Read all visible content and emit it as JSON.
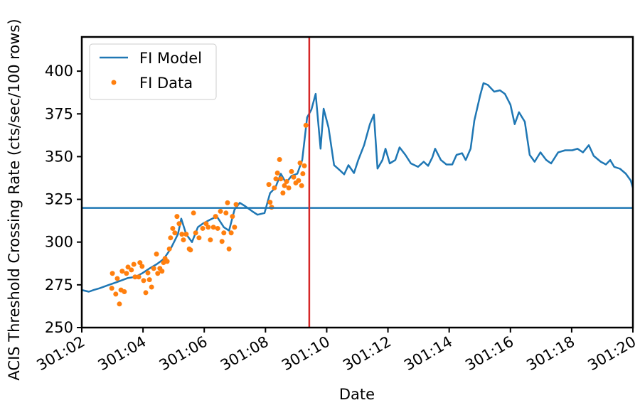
{
  "chart_data": {
    "type": "line",
    "xlabel": "Date",
    "ylabel": "ACIS Threshold Crossing Rate (cts/sec/100 rows)",
    "xlim": [
      2,
      20
    ],
    "xticks": [
      {
        "value": 2,
        "label": "301:02"
      },
      {
        "value": 4,
        "label": "301:04"
      },
      {
        "value": 6,
        "label": "301:06"
      },
      {
        "value": 8,
        "label": "301:08"
      },
      {
        "value": 10,
        "label": "301:10"
      },
      {
        "value": 12,
        "label": "301:12"
      },
      {
        "value": 14,
        "label": "301:14"
      },
      {
        "value": 16,
        "label": "301:16"
      },
      {
        "value": 18,
        "label": "301:18"
      },
      {
        "value": 20,
        "label": "301:20"
      }
    ],
    "ylim": [
      250,
      420
    ],
    "yticks": [
      250,
      275,
      300,
      325,
      350,
      375,
      400
    ],
    "legend": "upper left",
    "hlines": [
      {
        "value": 320,
        "color": "#1f77b4"
      }
    ],
    "vlines": [
      {
        "value": 9.43,
        "color": "#d62728"
      }
    ],
    "series": [
      {
        "name": "FI Model",
        "type": "line",
        "color": "#1f77b4",
        "x": [
          2.0,
          2.23,
          2.39,
          2.58,
          2.81,
          3.16,
          3.51,
          3.74,
          3.97,
          4.21,
          4.44,
          4.67,
          4.9,
          5.14,
          5.25,
          5.41,
          5.6,
          5.79,
          5.95,
          6.18,
          6.41,
          6.64,
          6.81,
          6.99,
          7.16,
          7.34,
          7.57,
          7.74,
          7.97,
          8.15,
          8.32,
          8.5,
          8.67,
          8.85,
          9.04,
          9.2,
          9.36,
          9.5,
          9.64,
          9.8,
          9.9,
          10.06,
          10.24,
          10.43,
          10.57,
          10.71,
          10.89,
          11.03,
          11.22,
          11.41,
          11.54,
          11.66,
          11.82,
          11.92,
          12.06,
          12.24,
          12.38,
          12.57,
          12.75,
          12.98,
          13.17,
          13.31,
          13.45,
          13.54,
          13.73,
          13.91,
          14.1,
          14.24,
          14.42,
          14.54,
          14.7,
          14.82,
          15.01,
          15.12,
          15.26,
          15.47,
          15.66,
          15.82,
          16.0,
          16.14,
          16.28,
          16.47,
          16.63,
          16.79,
          16.98,
          17.17,
          17.33,
          17.56,
          17.79,
          18.02,
          18.19,
          18.37,
          18.56,
          18.72,
          18.95,
          19.12,
          19.26,
          19.39,
          19.58,
          19.77,
          19.93,
          20.0
        ],
        "values": [
          272,
          271,
          272,
          273,
          274.5,
          276.7,
          279,
          279.6,
          281.7,
          284.6,
          287,
          290,
          296,
          304.6,
          313.7,
          304.6,
          300,
          308.7,
          310.8,
          313,
          315,
          308.7,
          306.7,
          319,
          323,
          321,
          318,
          316,
          317,
          328.7,
          331.7,
          340,
          334.6,
          338.7,
          340,
          348,
          373,
          377.5,
          386.7,
          354.6,
          378,
          367,
          345,
          342,
          339.6,
          345,
          340.4,
          348,
          356.7,
          369,
          374.6,
          343,
          348,
          354.6,
          346,
          348,
          355.4,
          351,
          346,
          344,
          347,
          344.6,
          349.6,
          354.6,
          348,
          345.4,
          345.4,
          351,
          352,
          348,
          354.6,
          371,
          385.8,
          393,
          392,
          388,
          388.8,
          386.7,
          380.4,
          369,
          376,
          370.4,
          351,
          347,
          352.5,
          348,
          346,
          352.5,
          353.7,
          353.7,
          354.6,
          352.5,
          356.7,
          350.4,
          347,
          345.4,
          348,
          344,
          342.9,
          340,
          336,
          331.7
        ]
      },
      {
        "name": "FI Data",
        "type": "scatter",
        "color": "#ff7f0e",
        "x": [
          3.0,
          2.98,
          3.11,
          3.16,
          3.23,
          3.28,
          3.32,
          3.39,
          3.46,
          3.51,
          3.62,
          3.7,
          3.74,
          3.86,
          3.9,
          3.97,
          4.02,
          4.09,
          4.16,
          4.21,
          4.28,
          4.35,
          4.44,
          4.48,
          4.55,
          4.62,
          4.67,
          4.72,
          4.79,
          4.86,
          4.9,
          4.97,
          5.04,
          5.11,
          5.18,
          5.27,
          5.32,
          5.41,
          5.51,
          5.55,
          5.65,
          5.72,
          5.83,
          5.95,
          6.06,
          6.13,
          6.2,
          6.3,
          6.37,
          6.44,
          6.53,
          6.58,
          6.64,
          6.71,
          6.76,
          6.81,
          6.88,
          6.92,
          6.99,
          7.04,
          8.11,
          8.15,
          8.2,
          8.29,
          8.34,
          8.39,
          8.46,
          8.5,
          8.57,
          8.62,
          8.69,
          8.76,
          8.85,
          8.92,
          8.99,
          9.08,
          9.13,
          9.18,
          9.22,
          9.27,
          9.32
        ],
        "values": [
          281.7,
          273,
          269.6,
          278.7,
          263.8,
          272,
          283,
          271,
          281.7,
          285.4,
          283.7,
          287,
          279.6,
          279.6,
          288,
          285.8,
          277.5,
          270.4,
          282,
          278,
          273.7,
          284.6,
          293,
          281.7,
          284.6,
          283,
          288,
          290.4,
          288.7,
          296,
          302.5,
          308,
          305.4,
          315,
          310.8,
          304.6,
          301.3,
          304.6,
          296,
          295.4,
          317,
          305.4,
          302.5,
          308,
          310.8,
          308.7,
          301.3,
          308.7,
          315,
          308,
          318,
          300.4,
          305.4,
          317,
          323,
          296,
          305.4,
          315,
          308.7,
          322,
          333.7,
          323.3,
          320.4,
          331.7,
          337,
          340.4,
          348.3,
          337,
          328.7,
          333,
          335.4,
          331.7,
          341.3,
          338,
          334.6,
          336,
          346.3,
          333,
          340,
          344.6,
          368.3
        ]
      }
    ]
  }
}
